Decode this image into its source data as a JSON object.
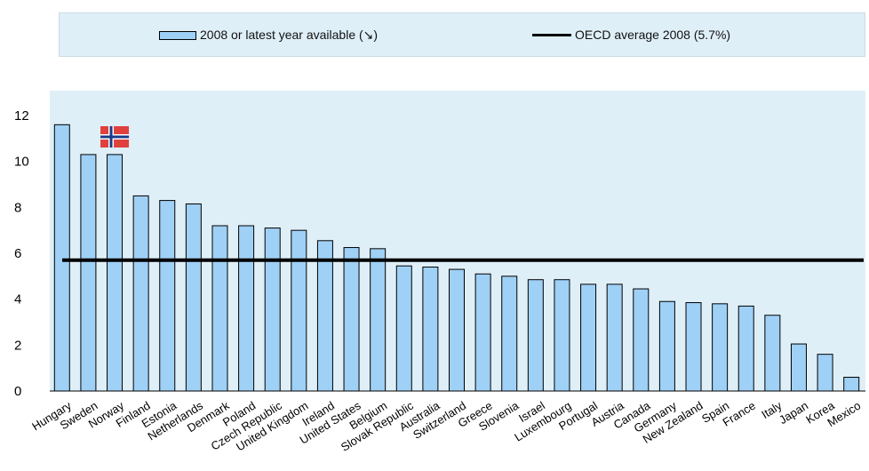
{
  "legend": {
    "bar_label": "2008 or latest year available (↘)",
    "line_label": "OECD average 2008 (5.7%)"
  },
  "chart_data": {
    "type": "bar",
    "categories": [
      "Hungary",
      "Sweden",
      "Norway",
      "Finland",
      "Estonia",
      "Netherlands",
      "Denmark",
      "Poland",
      "Czech Republic",
      "United Kingdom",
      "Ireland",
      "United States",
      "Belgium",
      "Slovak Republic",
      "Australia",
      "Switzerland",
      "Greece",
      "Slovenia",
      "Israel",
      "Luxembourg",
      "Portugal",
      "Austria",
      "Canada",
      "Germany",
      "New Zealand",
      "Spain",
      "France",
      "Italy",
      "Japan",
      "Korea",
      "Mexico"
    ],
    "series": [
      {
        "name": "2008 or latest year available (↘)",
        "values": [
          11.6,
          10.3,
          10.3,
          8.5,
          8.3,
          8.15,
          7.2,
          7.2,
          7.1,
          7.0,
          6.55,
          6.25,
          6.2,
          5.45,
          5.4,
          5.3,
          5.1,
          5.0,
          4.85,
          4.85,
          4.65,
          4.65,
          4.45,
          3.9,
          3.85,
          3.8,
          3.7,
          3.3,
          2.05,
          1.6,
          0.6
        ]
      }
    ],
    "reference_line": {
      "name": "OECD average 2008 (5.7%)",
      "value": 5.7
    },
    "ylim": [
      0,
      12
    ],
    "yticks": [
      0,
      2,
      4,
      6,
      8,
      10,
      12
    ],
    "title": "",
    "xlabel": "",
    "ylabel": "",
    "grid": false,
    "legend_position": "top",
    "flag_marker": {
      "category": "Norway",
      "icon": "norway-flag-icon"
    },
    "colors": {
      "bar": "#9fd0f6",
      "bar_border": "#000000",
      "plot_bg": "#dfeff8",
      "line": "#000000"
    }
  }
}
